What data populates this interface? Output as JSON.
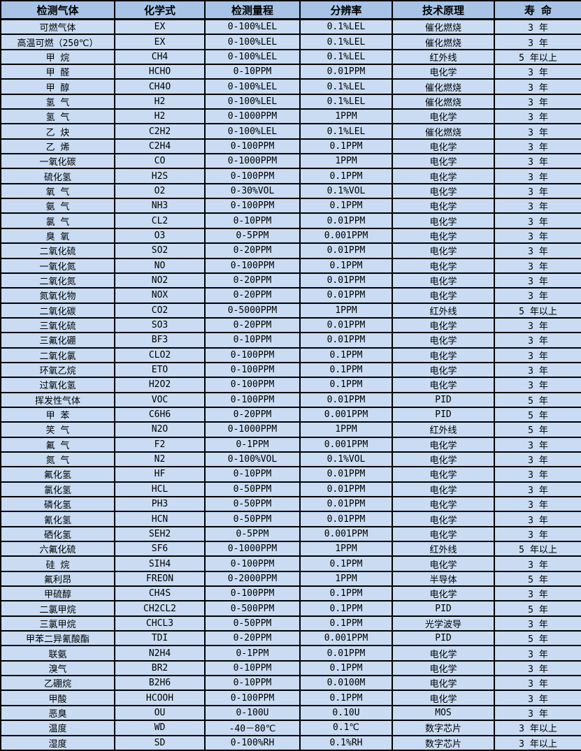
{
  "colors": {
    "header_bg": "#a7c4e7",
    "row_bg": "#c9dcf3",
    "border": "#000000",
    "text": "#000000"
  },
  "table": {
    "headers": [
      "检测气体",
      "化学式",
      "检测量程",
      "分辨率",
      "技术原理",
      "寿 命"
    ],
    "rows": [
      [
        "可燃气体",
        "EX",
        "0-100%LEL",
        "0.1%LEL",
        "催化燃烧",
        "3 年"
      ],
      [
        "高温可燃（250℃）",
        "EX",
        "0-100%LEL",
        "0.1%LEL",
        "催化燃烧",
        "3 年"
      ],
      [
        "甲 烷",
        "CH4",
        "0-100%LEL",
        "0.1%LEL",
        "红外线",
        "5 年以上"
      ],
      [
        "甲 醛",
        "HCHO",
        "0-10PPM",
        "0.01PPM",
        "电化学",
        "3 年"
      ],
      [
        "甲 醇",
        "CH4O",
        "0-100%LEL",
        "0.1%LEL",
        "催化燃烧",
        "3 年"
      ],
      [
        "氢 气",
        "H2",
        "0-100%LEL",
        "0.1%LEL",
        "催化燃烧",
        "3 年"
      ],
      [
        "氢 气",
        "H2",
        "0-1000PPM",
        "1PPM",
        "电化学",
        "3 年"
      ],
      [
        "乙 炔",
        "C2H2",
        "0-100%LEL",
        "0.1%LEL",
        "催化燃烧",
        "3 年"
      ],
      [
        "乙 烯",
        "C2H4",
        "0-100PPM",
        "0.1PPM",
        "电化学",
        "3 年"
      ],
      [
        "一氧化碳",
        "CO",
        "0-1000PPM",
        "1PPM",
        "电化学",
        "3 年"
      ],
      [
        "硫化氢",
        "H2S",
        "0-100PPM",
        "0.1PPM",
        "电化学",
        "3 年"
      ],
      [
        "氧 气",
        "O2",
        "0-30%VOL",
        "0.1%VOL",
        "电化学",
        "3 年"
      ],
      [
        "氨 气",
        "NH3",
        "0-100PPM",
        "0.1PPM",
        "电化学",
        "3 年"
      ],
      [
        "氯 气",
        "CL2",
        "0-10PPM",
        "0.01PPM",
        "电化学",
        "3 年"
      ],
      [
        "臭 氧",
        "O3",
        "0-5PPM",
        "0.001PPM",
        "电化学",
        "3 年"
      ],
      [
        "二氧化硫",
        "SO2",
        "0-20PPM",
        "0.01PPM",
        "电化学",
        "3 年"
      ],
      [
        "一氧化氮",
        "NO",
        "0-100PPM",
        "0.1PPM",
        "电化学",
        "3 年"
      ],
      [
        "二氧化氮",
        "NO2",
        "0-20PPM",
        "0.01PPM",
        "电化学",
        "3 年"
      ],
      [
        "氮氧化物",
        "NOX",
        "0-20PPM",
        "0.01PPM",
        "电化学",
        "3 年"
      ],
      [
        "二氧化碳",
        "CO2",
        "0-5000PPM",
        "1PPM",
        "红外线",
        "5 年以上"
      ],
      [
        "三氧化硫",
        "SO3",
        "0-20PPM",
        "0.01PPM",
        "电化学",
        "3 年"
      ],
      [
        "三氟化硼",
        "BF3",
        "0-10PPM",
        "0.01PPM",
        "电化学",
        "3 年"
      ],
      [
        "二氧化氯",
        "CLO2",
        "0-100PPM",
        "0.1PPM",
        "电化学",
        "3 年"
      ],
      [
        "环氧乙烷",
        "ETO",
        "0-100PPM",
        "0.1PPM",
        "电化学",
        "3 年"
      ],
      [
        "过氧化氢",
        "H2O2",
        "0-100PPM",
        "0.1PPM",
        "电化学",
        "3 年"
      ],
      [
        "挥发性气体",
        "VOC",
        "0-100PPM",
        "0.01PPM",
        "PID",
        "5 年"
      ],
      [
        "甲 苯",
        "C6H6",
        "0-20PPM",
        "0.001PPM",
        "PID",
        "5 年"
      ],
      [
        "笑 气",
        "N2O",
        "0-1000PPM",
        "1PPM",
        "红外线",
        "5 年"
      ],
      [
        "氟 气",
        "F2",
        "0-1PPM",
        "0.001PPM",
        "电化学",
        "3 年"
      ],
      [
        "氮 气",
        "N2",
        "0-100%VOL",
        "0.1%VOL",
        "电化学",
        "3 年"
      ],
      [
        "氟化氢",
        "HF",
        "0-10PPM",
        "0.01PPM",
        "电化学",
        "3 年"
      ],
      [
        "氯化氢",
        "HCL",
        "0-50PPM",
        "0.01PPM",
        "电化学",
        "3 年"
      ],
      [
        "磷化氢",
        "PH3",
        "0-50PPM",
        "0.01PPM",
        "电化学",
        "3 年"
      ],
      [
        "氰化氢",
        "HCN",
        "0-50PPM",
        "0.01PPM",
        "电化学",
        "3 年"
      ],
      [
        "硒化氢",
        "SEH2",
        "0-5PPM",
        "0.001PPM",
        "电化学",
        "3 年"
      ],
      [
        "六氟化硫",
        "SF6",
        "0-1000PPM",
        "1PPM",
        "红外线",
        "5 年以上"
      ],
      [
        "硅 烷",
        "SIH4",
        "0-100PPM",
        "0.1PPM",
        "电化学",
        "3 年"
      ],
      [
        "氟利昂",
        "FREON",
        "0-2000PPM",
        "1PPM",
        "半导体",
        "5 年"
      ],
      [
        "甲硫醇",
        "CH4S",
        "0-100PPM",
        "0.1PPM",
        "电化学",
        "3 年"
      ],
      [
        "二氯甲烷",
        "CH2CL2",
        "0-500PPM",
        "0.1PPM",
        "PID",
        "5 年"
      ],
      [
        "三氯甲烷",
        "CHCL3",
        "0-50PPM",
        "0.1PPM",
        "光学波导",
        "3 年"
      ],
      [
        "甲苯二异氰酸酯",
        "TDI",
        "0-20PPM",
        "0.001PPM",
        "PID",
        "5 年"
      ],
      [
        "联氨",
        "N2H4",
        "0-1PPM",
        "0.01PPM",
        "电化学",
        "3 年"
      ],
      [
        "溴气",
        "BR2",
        "0-10PPM",
        "0.1PPM",
        "电化学",
        "3 年"
      ],
      [
        "乙硼烷",
        "B2H6",
        "0-10PPM",
        "0.0100M",
        "电化学",
        "3 年"
      ],
      [
        "甲酸",
        "HCOOH",
        "0-100PPM",
        "0.1PPM",
        "电化学",
        "3 年"
      ],
      [
        "恶臭",
        "OU",
        "0-100U",
        "0.10U",
        "MOS",
        "3 年"
      ],
      [
        "温度",
        "WD",
        "-40－80℃",
        "0.1℃",
        "数字芯片",
        "3 年以上"
      ],
      [
        "湿度",
        "SD",
        "0-100%RH",
        "0.1%RH",
        "数字芯片",
        "3 年以上"
      ]
    ]
  }
}
